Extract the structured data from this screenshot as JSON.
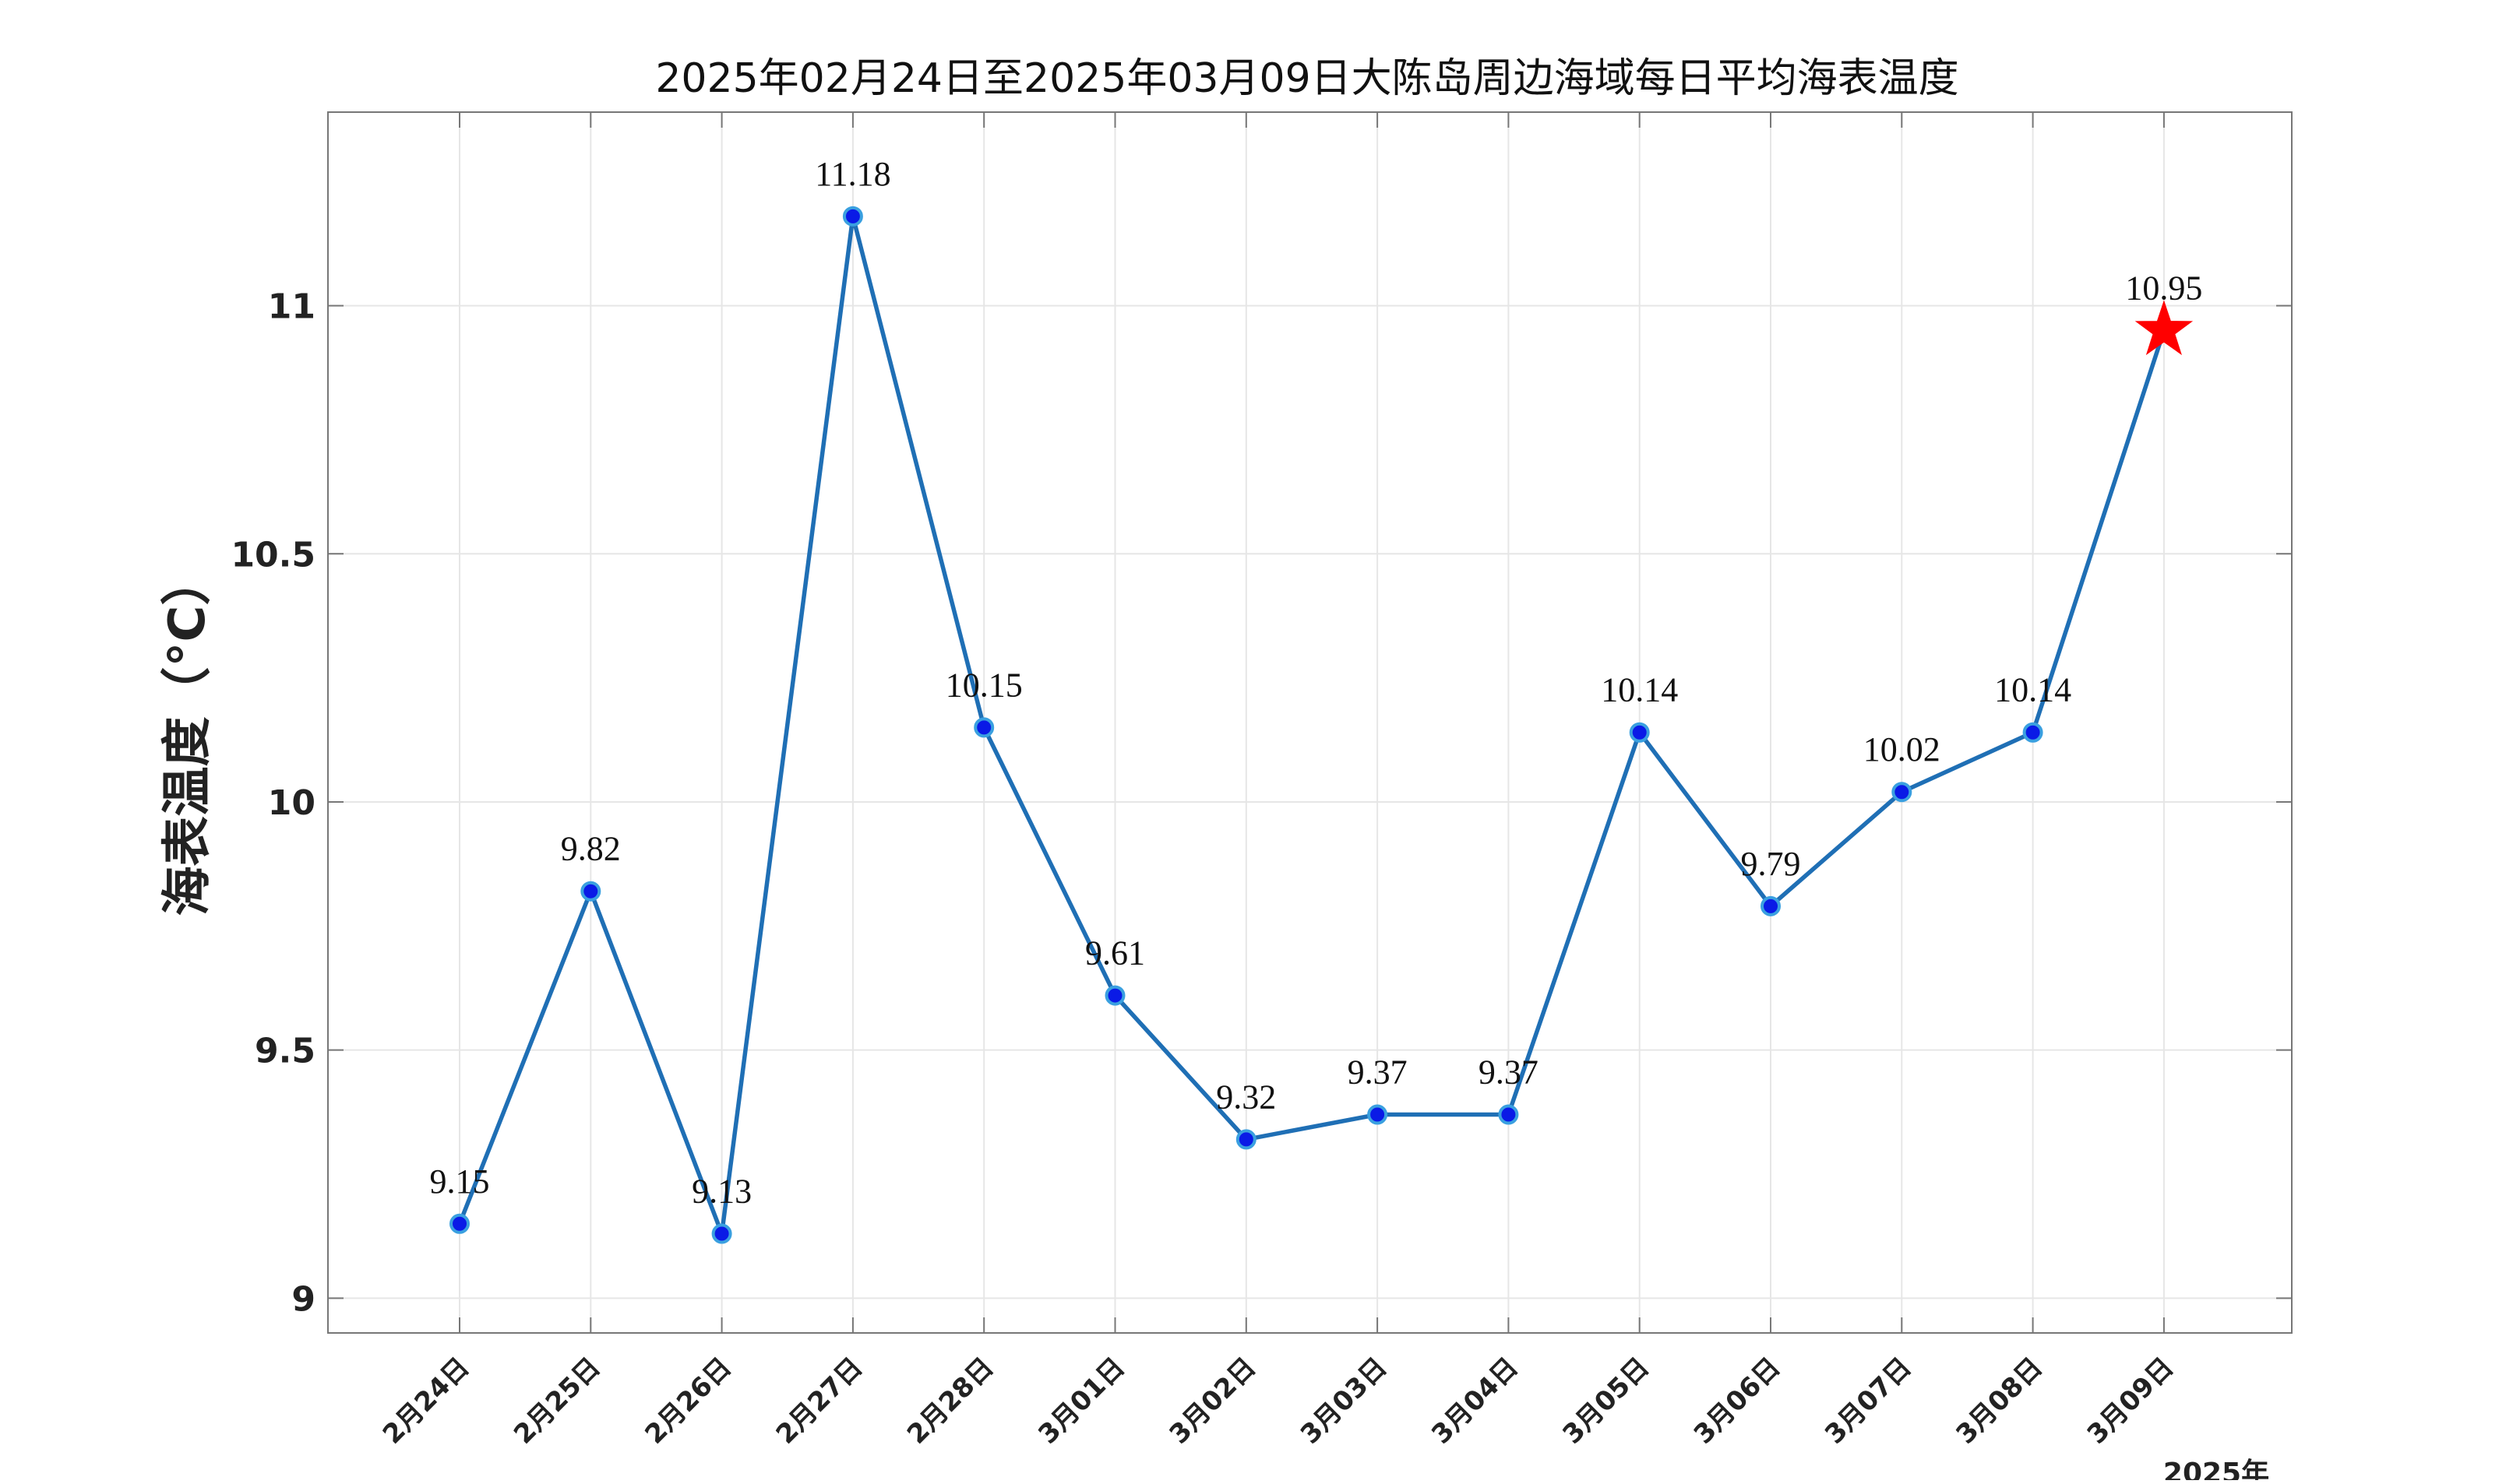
{
  "chart_data": {
    "type": "line",
    "title": "2025年02月24日至2025年03月09日大陈岛周边海域每日平均海表温度",
    "ylabel": "海表温度（°C）",
    "xunit": "2025年",
    "categories": [
      "2月24日",
      "2月25日",
      "2月26日",
      "2月27日",
      "2月28日",
      "3月01日",
      "3月02日",
      "3月03日",
      "3月04日",
      "3月05日",
      "3月06日",
      "3月07日",
      "3月08日",
      "3月09日"
    ],
    "values": [
      9.15,
      9.82,
      9.13,
      11.18,
      10.15,
      9.61,
      9.32,
      9.37,
      9.37,
      10.14,
      9.79,
      10.02,
      10.14,
      10.95
    ],
    "data_labels": [
      "9.15",
      "9.82",
      "9.13",
      "11.18",
      "10.15",
      "9.61",
      "9.32",
      "9.37",
      "9.37",
      "10.14",
      "9.79",
      "10.02",
      "10.14",
      "10.95"
    ],
    "yticks": [
      "9",
      "9.5",
      "10",
      "10.5",
      "11"
    ],
    "ytick_values": [
      9,
      9.5,
      10,
      10.5,
      11
    ],
    "ylim": [
      8.93,
      11.39
    ],
    "grid": true,
    "highlight_last_point": "red-star-marker",
    "colors": {
      "line": "#1f6fb5",
      "marker_fill": "#0a1ae6",
      "marker_edge": "#3aa0e0",
      "highlight": "#ff0000",
      "grid": "#e6e6e6",
      "axes": "#777777"
    }
  }
}
